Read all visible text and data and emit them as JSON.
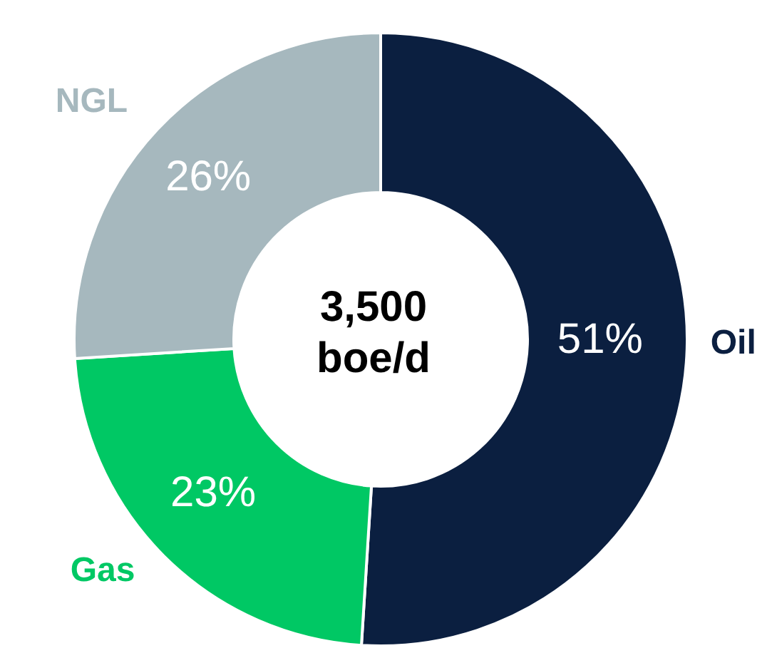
{
  "chart_data": {
    "type": "donut",
    "categories": [
      "Oil",
      "Gas",
      "NGL"
    ],
    "values": [
      51,
      23,
      26
    ],
    "colors": [
      "#0b1f40",
      "#00c864",
      "#a6b8be"
    ],
    "value_labels": [
      "51%",
      "23%",
      "26%"
    ],
    "annotations": [
      "3,500",
      "boe/d"
    ]
  }
}
